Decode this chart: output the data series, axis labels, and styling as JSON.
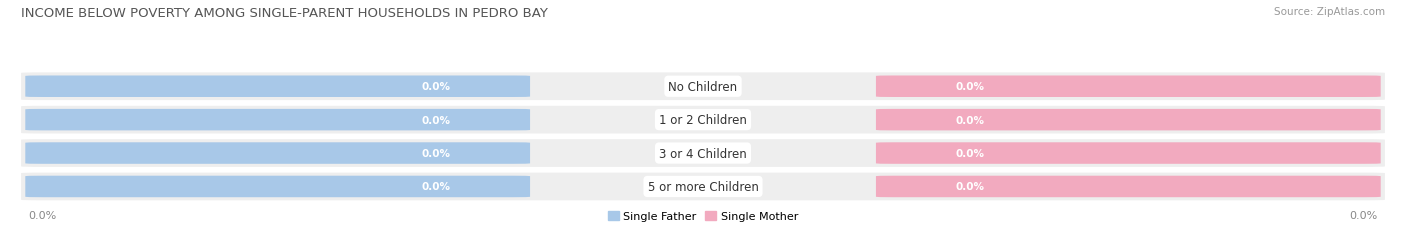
{
  "title": "INCOME BELOW POVERTY AMONG SINGLE-PARENT HOUSEHOLDS IN PEDRO BAY",
  "source_text": "Source: ZipAtlas.com",
  "categories": [
    "No Children",
    "1 or 2 Children",
    "3 or 4 Children",
    "5 or more Children"
  ],
  "single_father_values": [
    0.0,
    0.0,
    0.0,
    0.0
  ],
  "single_mother_values": [
    0.0,
    0.0,
    0.0,
    0.0
  ],
  "father_color": "#a8c8e8",
  "mother_color": "#f2aabf",
  "row_bg_color": "#eeeeee",
  "fig_bg_color": "#ffffff",
  "title_color": "#555555",
  "source_color": "#999999",
  "value_label_color": "#ffffff",
  "cat_label_color": "#333333",
  "axis_label_color": "#888888",
  "title_fontsize": 9.5,
  "cat_fontsize": 8.5,
  "val_fontsize": 7.5,
  "legend_fontsize": 8,
  "axis_tick_fontsize": 8
}
